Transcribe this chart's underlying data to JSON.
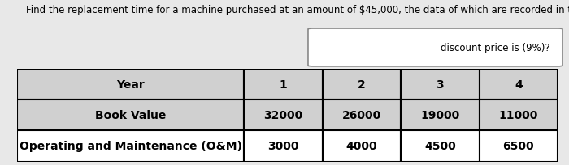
{
  "title_line1": "Find the replacement time for a machine purchased at an amount of $45,000, the data of which are recorded in the following table, knowing that the",
  "title_line2": "discount price is (9%)?",
  "header_row": [
    "Year",
    "1",
    "2",
    "3",
    "4"
  ],
  "row1_label": "Book Value",
  "row1_values": [
    "32000",
    "26000",
    "19000",
    "11000"
  ],
  "row2_label": "Operating and Maintenance (O&M)",
  "row2_values": [
    "3000",
    "4000",
    "4500",
    "6500"
  ],
  "bg_color": "#e8e8e8",
  "cell_bg_header": "#d0d0d0",
  "cell_bg_data": "#f0f0f0",
  "border_color": "#000000",
  "text_color": "#000000",
  "title_fontsize": 8.5,
  "table_fontsize": 10,
  "figsize": [
    7.0,
    2.05
  ],
  "dpi": 100
}
